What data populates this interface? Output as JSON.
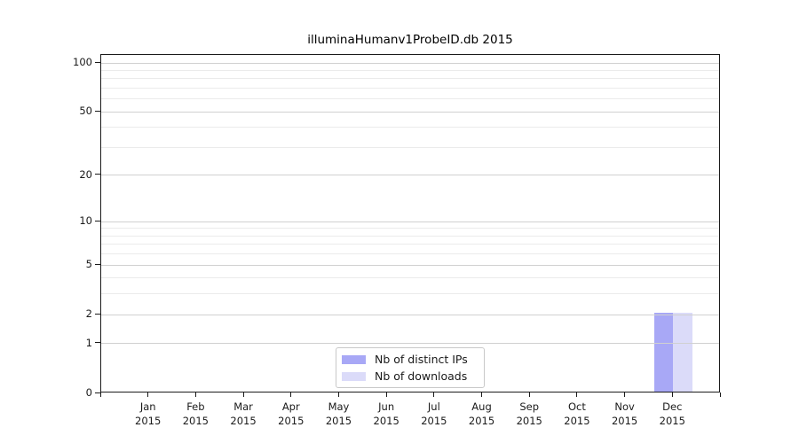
{
  "chart_data": {
    "type": "bar",
    "title": "illuminaHumanv1ProbeID.db 2015",
    "categories": [
      "Jan",
      "Feb",
      "Mar",
      "Apr",
      "May",
      "Jun",
      "Jul",
      "Aug",
      "Sep",
      "Oct",
      "Nov",
      "Dec"
    ],
    "year": "2015",
    "series": [
      {
        "name": "Nb of distinct IPs",
        "color": "#a8a8f6",
        "values": [
          0,
          0,
          0,
          0,
          0,
          0,
          0,
          0,
          0,
          0,
          0,
          2
        ]
      },
      {
        "name": "Nb of downloads",
        "color": "#dbdbf9",
        "values": [
          0,
          0,
          0,
          0,
          0,
          0,
          0,
          0,
          0,
          0,
          0,
          2
        ]
      }
    ],
    "y_axis": {
      "scale": "log1p",
      "tick_values": [
        0,
        1,
        2,
        5,
        10,
        20,
        50,
        100
      ],
      "minor_gridline_values": [
        3,
        4,
        6,
        7,
        8,
        9,
        30,
        40,
        60,
        70,
        80,
        90
      ],
      "ylim": [
        0,
        100
      ]
    },
    "grid": "on",
    "legend_position": "bottom-center"
  },
  "colors": {
    "bar_distinct_ips": "#a8a8f6",
    "bar_downloads": "#dbdbf9",
    "gridline_major": "#d0d0d0",
    "gridline_minor": "#ebebeb",
    "axis": "#1a1a1a",
    "text": "#1a1a1a",
    "legend_border": "#c9c9c9",
    "background": "#ffffff"
  }
}
